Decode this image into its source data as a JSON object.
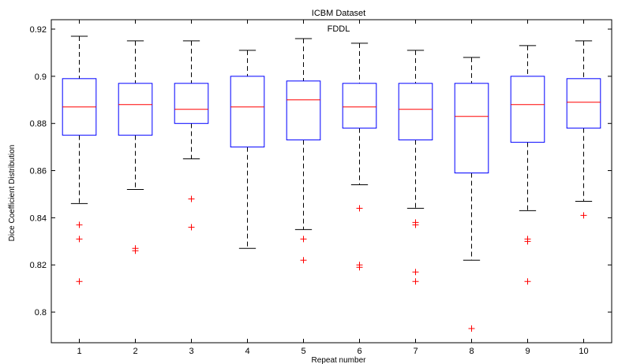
{
  "chart_data": {
    "type": "box",
    "title": "ICBM Dataset",
    "subtitle": "FDDL",
    "xlabel": "Repeat number",
    "ylabel": "Dice Coefficient Distribution",
    "ylim": [
      0.787,
      0.924
    ],
    "yticks": [
      0.8,
      0.82,
      0.84,
      0.86,
      0.88,
      0.9,
      0.92
    ],
    "ytick_labels": [
      "0.8",
      "0.82",
      "0.84",
      "0.86",
      "0.88",
      "0.9",
      "0.92"
    ],
    "categories": [
      "1",
      "2",
      "3",
      "4",
      "5",
      "6",
      "7",
      "8",
      "9",
      "10"
    ],
    "grid": false,
    "colors": {
      "box": "#0000ff",
      "median": "#ff0000",
      "whisker": "#000000",
      "outlier": "#ff0000"
    },
    "boxes": [
      {
        "label": "1",
        "whisker_low": 0.846,
        "q1": 0.875,
        "median": 0.887,
        "q3": 0.899,
        "whisker_high": 0.917,
        "outliers": [
          0.837,
          0.831,
          0.813
        ]
      },
      {
        "label": "2",
        "whisker_low": 0.852,
        "q1": 0.875,
        "median": 0.888,
        "q3": 0.897,
        "whisker_high": 0.915,
        "outliers": [
          0.827,
          0.826
        ]
      },
      {
        "label": "3",
        "whisker_low": 0.865,
        "q1": 0.88,
        "median": 0.886,
        "q3": 0.897,
        "whisker_high": 0.915,
        "outliers": [
          0.848,
          0.836
        ]
      },
      {
        "label": "4",
        "whisker_low": 0.827,
        "q1": 0.87,
        "median": 0.887,
        "q3": 0.9,
        "whisker_high": 0.911,
        "outliers": []
      },
      {
        "label": "5",
        "whisker_low": 0.835,
        "q1": 0.873,
        "median": 0.89,
        "q3": 0.898,
        "whisker_high": 0.916,
        "outliers": [
          0.831,
          0.822
        ]
      },
      {
        "label": "6",
        "whisker_low": 0.854,
        "q1": 0.878,
        "median": 0.887,
        "q3": 0.897,
        "whisker_high": 0.914,
        "outliers": [
          0.844,
          0.82,
          0.819
        ]
      },
      {
        "label": "7",
        "whisker_low": 0.844,
        "q1": 0.873,
        "median": 0.886,
        "q3": 0.897,
        "whisker_high": 0.911,
        "outliers": [
          0.838,
          0.837,
          0.817,
          0.813
        ]
      },
      {
        "label": "8",
        "whisker_low": 0.822,
        "q1": 0.859,
        "median": 0.883,
        "q3": 0.897,
        "whisker_high": 0.908,
        "outliers": [
          0.793
        ]
      },
      {
        "label": "9",
        "whisker_low": 0.843,
        "q1": 0.872,
        "median": 0.888,
        "q3": 0.9,
        "whisker_high": 0.913,
        "outliers": [
          0.831,
          0.83,
          0.813
        ]
      },
      {
        "label": "10",
        "whisker_low": 0.847,
        "q1": 0.878,
        "median": 0.889,
        "q3": 0.899,
        "whisker_high": 0.915,
        "outliers": [
          0.841
        ]
      }
    ]
  }
}
